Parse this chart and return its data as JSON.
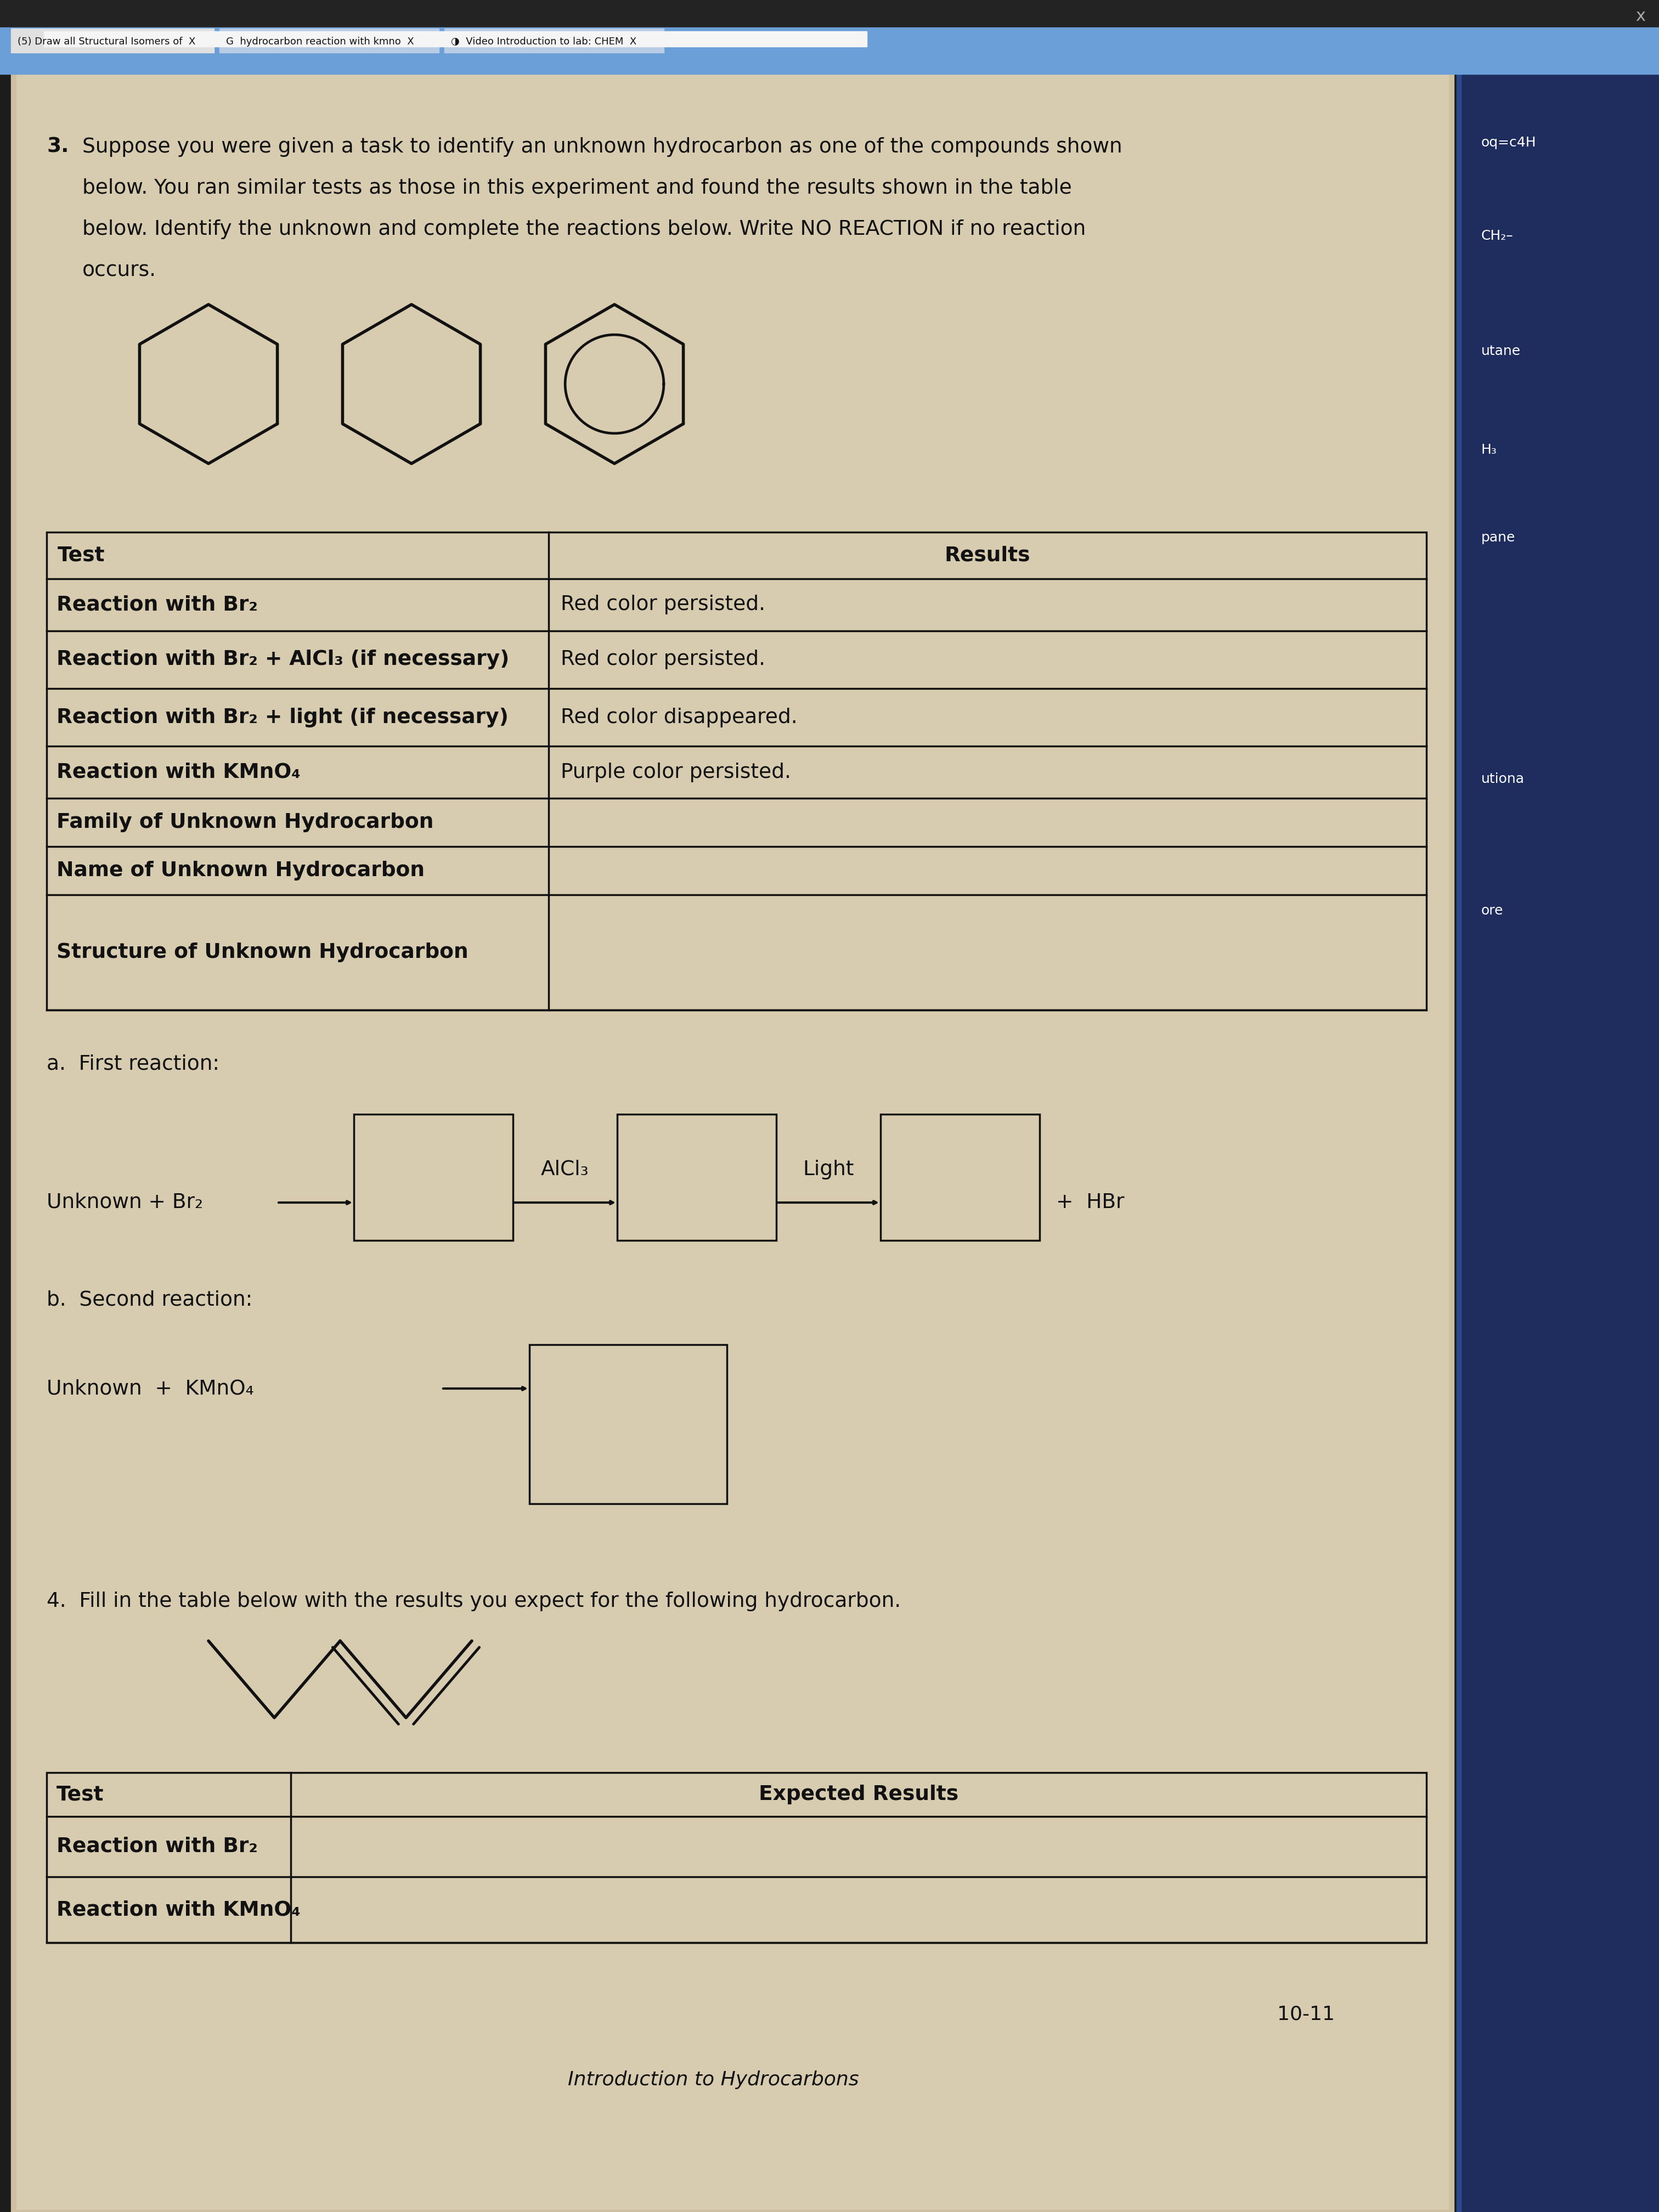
{
  "bg_color": "#1a1a1a",
  "paper_color": "#d4c8a8",
  "paper_light": "#e8dfc0",
  "text_color": "#111111",
  "title_number": "3.",
  "title_line1": "Suppose you were given a task to identify an unknown hydrocarbon as one of the compounds shown",
  "title_line2": "below. You ran similar tests as those in this experiment and found the results shown in the table",
  "title_line3": "below. Identify the unknown and complete the reactions below. Write NO REACTION if no reaction",
  "title_line4": "occurs.",
  "table1_headers": [
    "Test",
    "Results"
  ],
  "table1_rows": [
    [
      "Reaction with Br₂",
      "Red color persisted."
    ],
    [
      "Reaction with Br₂ + AlCl₃ (if necessary)",
      "Red color persisted."
    ],
    [
      "Reaction with Br₂ + light (if necessary)",
      "Red color disappeared."
    ],
    [
      "Reaction with KMnO₄",
      "Purple color persisted."
    ],
    [
      "Family of Unknown Hydrocarbon",
      ""
    ],
    [
      "Name of Unknown Hydrocarbon",
      ""
    ],
    [
      "Structure of Unknown Hydrocarbon",
      ""
    ]
  ],
  "reaction_a_label": "a.  First reaction:",
  "reaction_a_left": "Unknown + Br₂",
  "reaction_a_over1": "AlCl₃",
  "reaction_a_over2": "Light",
  "reaction_a_right": "+  HBr",
  "reaction_b_label": "b.  Second reaction:",
  "reaction_b_left": "Unknown  +  KMnO₄",
  "question4_text": "4.  Fill in the table below with the results you expect for the following hydrocarbon.",
  "table2_headers": [
    "Test",
    "Expected Results"
  ],
  "table2_rows": [
    [
      "Reaction with Br₂",
      ""
    ],
    [
      "Reaction with KMnO₄",
      ""
    ]
  ],
  "page_number": "10-11",
  "footer_text": "Introduction to Hydrocarbons",
  "browser_tab1": "(5) Draw all Structural Isomers of  X",
  "browser_tab2": "G  hydrocarbon reaction with kmno  X",
  "browser_tab3": "◑  Video Introduction to lab: CHEM  X",
  "sidebar_text1": "oq=c4H",
  "sidebar_text2": "CH₂–",
  "sidebar_text3": "utane",
  "sidebar_text4": "H₃",
  "sidebar_text5": "pane",
  "sidebar_text6": "utiona",
  "sidebar_text7": "ore"
}
